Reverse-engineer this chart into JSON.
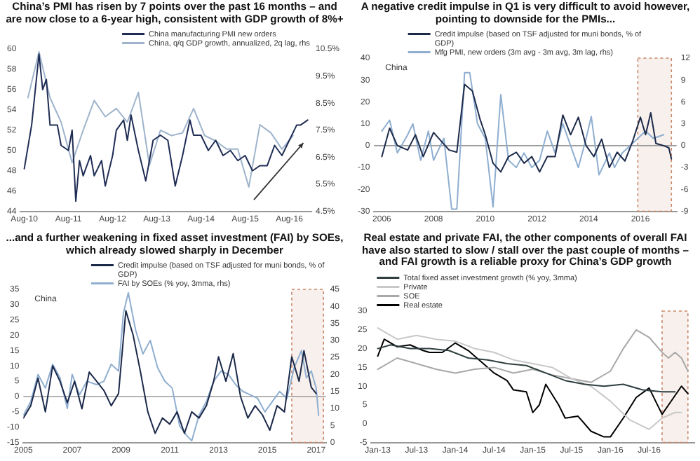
{
  "chart_data": [
    {
      "type": "line",
      "title": "China’s PMI has risen by 7 points over the past 16 months – and are now close to a 6-year high, consistent with GDP growth of 8%+",
      "legend": "top right",
      "xlim": [
        "2010-07",
        "2017-02"
      ],
      "xticks": [
        {
          "value": "2010-08",
          "label": "Aug-10"
        },
        {
          "value": "2011-08",
          "label": "Aug-11"
        },
        {
          "value": "2012-08",
          "label": "Aug-12"
        },
        {
          "value": "2013-08",
          "label": "Aug-13"
        },
        {
          "value": "2014-08",
          "label": "Aug-14"
        },
        {
          "value": "2015-08",
          "label": "Aug-15"
        },
        {
          "value": "2016-08",
          "label": "Aug-16"
        }
      ],
      "ylim": [
        44,
        60
      ],
      "yticks": [
        44,
        46,
        48,
        50,
        52,
        54,
        56,
        58,
        60
      ],
      "y2lim": [
        4.5,
        10.5
      ],
      "y2ticks": [
        {
          "value": 4.5,
          "label": "4.5%"
        },
        {
          "value": 5.5,
          "label": "5.5%"
        },
        {
          "value": 6.5,
          "label": "6.5%"
        },
        {
          "value": 7.5,
          "label": "7.5%"
        },
        {
          "value": 8.5,
          "label": "8.5%"
        },
        {
          "value": 9.5,
          "label": "9.5%"
        },
        {
          "value": 10.5,
          "label": "10.5%"
        }
      ],
      "series": [
        {
          "name": "China manufacturing PMI new orders",
          "color": "#1f2d55",
          "x": [
            "2010-08",
            "2010-10",
            "2010-11",
            "2010-12",
            "2011-01",
            "2011-02",
            "2011-03",
            "2011-05",
            "2011-06",
            "2011-08",
            "2011-09",
            "2011-10",
            "2011-11",
            "2011-12",
            "2012-02",
            "2012-03",
            "2012-05",
            "2012-06",
            "2012-08",
            "2012-09",
            "2012-11",
            "2012-12",
            "2013-01",
            "2013-03",
            "2013-05",
            "2013-07",
            "2013-09",
            "2013-11",
            "2014-01",
            "2014-03",
            "2014-05",
            "2014-06",
            "2014-08",
            "2014-10",
            "2014-12",
            "2015-02",
            "2015-04",
            "2015-06",
            "2015-08",
            "2015-10",
            "2015-12",
            "2016-02",
            "2016-04",
            "2016-06",
            "2016-08",
            "2016-10",
            "2016-11",
            "2017-01"
          ],
          "values": [
            48.2,
            52.5,
            56,
            59.5,
            56,
            57,
            52.5,
            52.5,
            50.5,
            50,
            52,
            45,
            49,
            47.5,
            49.5,
            47.5,
            49,
            46.5,
            49.5,
            52,
            53,
            51,
            53.5,
            50,
            47,
            51,
            51.5,
            51,
            46.5,
            49.5,
            53,
            51.5,
            51.5,
            50,
            51,
            49.5,
            50,
            49,
            49.5,
            48,
            48.5,
            48.5,
            50.5,
            49.5,
            51,
            52.5,
            52.5,
            53
          ]
        },
        {
          "name": "China, q/q GDP growth, annualized, 2q lag, rhs",
          "color": "#9fb4cc",
          "axis": "y2",
          "x": [
            "2010-09",
            "2010-12",
            "2011-03",
            "2011-06",
            "2011-09",
            "2011-12",
            "2012-03",
            "2012-06",
            "2012-09",
            "2012-12",
            "2013-03",
            "2013-06",
            "2013-09",
            "2013-12",
            "2014-03",
            "2014-06",
            "2014-09",
            "2014-12",
            "2015-03",
            "2015-06",
            "2015-09",
            "2015-12",
            "2016-03",
            "2016-06",
            "2016-09"
          ],
          "values": [
            8.7,
            10.4,
            8.7,
            7.8,
            6.3,
            7.5,
            8.6,
            8,
            8.3,
            7.8,
            8.9,
            6.2,
            7.5,
            7.3,
            7.4,
            8.3,
            7.3,
            7.1,
            6.8,
            6.8,
            5.4,
            7.7,
            7.4,
            6.8,
            7.3
          ]
        }
      ]
    },
    {
      "type": "line",
      "title": "A negative credit impulse in Q1 is very difficult to avoid however, pointing to downside for the PMIs...",
      "legend": "top",
      "annotations": [
        "China"
      ],
      "xlim": [
        2005.7,
        2017.4
      ],
      "xticks": [
        2006,
        2008,
        2010,
        2012,
        2014,
        2016
      ],
      "ylim": [
        -30,
        40
      ],
      "yticks": [
        -30,
        -20,
        -10,
        0,
        10,
        20,
        30,
        40
      ],
      "y2lim": [
        -9,
        12
      ],
      "y2ticks": [
        -9,
        -6,
        -3,
        0,
        3,
        6,
        9,
        12
      ],
      "ref_lines": [
        {
          "axis": "y",
          "value": 0,
          "color": "#9a9a9a"
        }
      ],
      "bands": [
        {
          "axis": "x",
          "from": 2015.9,
          "to": 2017.2,
          "color": "#c8876a"
        }
      ],
      "series": [
        {
          "name": "Credit impulse (based on TSF adjusted for muni bonds, % of GDP)",
          "color": "#1c2a4a",
          "x": [
            2006,
            2006.3,
            2006.6,
            2007,
            2007.3,
            2007.6,
            2008,
            2008.3,
            2008.6,
            2008.9,
            2009.2,
            2009.5,
            2009.8,
            2010,
            2010.3,
            2010.6,
            2010.9,
            2011.2,
            2011.5,
            2011.8,
            2012.1,
            2012.4,
            2012.7,
            2013,
            2013.3,
            2013.6,
            2013.9,
            2014.2,
            2014.5,
            2014.8,
            2015.1,
            2015.4,
            2015.7,
            2016,
            2016.2,
            2016.4,
            2016.6,
            2016.9,
            2017.1,
            2017.2
          ],
          "values": [
            -5,
            8,
            0,
            -2,
            5,
            -5,
            6,
            2,
            -2,
            -3,
            28,
            25,
            12,
            5,
            -8,
            -12,
            -5,
            -3,
            -8,
            -5,
            -12,
            -5,
            -5,
            14,
            5,
            13,
            0,
            -5,
            3,
            -10,
            -3,
            -7,
            2,
            13,
            5,
            15,
            1,
            0,
            -1,
            -6
          ]
        },
        {
          "name": "Mfg PMI, new orders (3m avg - 3m avg, 3m lag, rhs)",
          "color": "#8faed0",
          "axis": "y2",
          "x": [
            2006,
            2006.3,
            2006.6,
            2007,
            2007.2,
            2007.5,
            2007.8,
            2008,
            2008.4,
            2008.7,
            2008.9,
            2009.2,
            2009.4,
            2009.7,
            2010,
            2010.3,
            2010.6,
            2010.9,
            2011.2,
            2011.5,
            2011.8,
            2012.1,
            2012.4,
            2012.7,
            2013,
            2013.3,
            2013.6,
            2013.9,
            2014.1,
            2014.4,
            2014.8,
            2015,
            2015.3,
            2015.6,
            2015.9,
            2016.2,
            2016.5,
            2016.9
          ],
          "values": [
            2,
            3.5,
            -1,
            1.5,
            3,
            -2,
            2,
            -2,
            1,
            -8.7,
            -8.7,
            10,
            10,
            3,
            1,
            -8.4,
            7,
            -2,
            -3,
            -1,
            -3,
            -2,
            2,
            -1,
            3,
            0,
            -3,
            1,
            4,
            -4,
            -1,
            -3,
            -1,
            0,
            1,
            2,
            1,
            1.5
          ]
        }
      ]
    },
    {
      "type": "line",
      "title": "...and a further weakening in fixed asset investment (FAI) by SOEs, which already slowed sharply in December",
      "legend": "top right",
      "annotations": [
        "China"
      ],
      "xlim": [
        2005,
        2017.4
      ],
      "xticks": [
        2005,
        2007,
        2009,
        2011,
        2013,
        2015,
        2017
      ],
      "ylim": [
        -15,
        35
      ],
      "yticks": [
        -15,
        -10,
        -5,
        0,
        5,
        10,
        15,
        20,
        25,
        30,
        35
      ],
      "y2lim": [
        0,
        45
      ],
      "y2ticks": [
        0,
        5,
        10,
        15,
        20,
        25,
        30,
        35,
        40,
        45
      ],
      "ref_lines": [
        {
          "axis": "y",
          "value": 0,
          "color": "#9a9a9a"
        }
      ],
      "bands": [
        {
          "axis": "x",
          "from": 2016,
          "to": 2017.3,
          "color": "#c8876a"
        }
      ],
      "series": [
        {
          "name": "Credit impulse (based on TSF adjusted for muni bonds, % of GDP)",
          "color": "#1c2a4a",
          "x": [
            2005,
            2005.3,
            2005.6,
            2005.9,
            2006.2,
            2006.5,
            2006.8,
            2007.1,
            2007.4,
            2007.7,
            2008,
            2008.3,
            2008.6,
            2008.9,
            2009.2,
            2009.5,
            2009.8,
            2010.1,
            2010.4,
            2010.7,
            2011,
            2011.3,
            2011.6,
            2011.9,
            2012.2,
            2012.5,
            2012.8,
            2013,
            2013.3,
            2013.6,
            2013.9,
            2014.2,
            2014.5,
            2014.8,
            2015.1,
            2015.4,
            2015.7,
            2016,
            2016.3,
            2016.5,
            2016.8,
            2017
          ],
          "values": [
            -7,
            -3,
            6,
            -5,
            10,
            5,
            -2,
            5,
            -4,
            8,
            5,
            2,
            -3,
            1,
            28,
            20,
            8,
            -5,
            -12,
            -7,
            -9,
            -5,
            -12,
            -5,
            -7,
            -3,
            5,
            13,
            5,
            14,
            0,
            -7,
            -3,
            -6,
            -11,
            -3,
            -5,
            13,
            5,
            15,
            3,
            1
          ]
        },
        {
          "name": "FAI by SOEs (% yoy, 3mma, rhs)",
          "color": "#8faed0",
          "axis": "y2",
          "x": [
            2005,
            2005.3,
            2005.6,
            2005.9,
            2006.2,
            2006.5,
            2006.8,
            2007,
            2007.3,
            2007.6,
            2008,
            2008.3,
            2008.6,
            2008.9,
            2009.1,
            2009.3,
            2009.6,
            2009.9,
            2010.2,
            2010.5,
            2010.8,
            2011.1,
            2011.4,
            2011.7,
            2011.9,
            2012.2,
            2012.5,
            2012.8,
            2013.1,
            2013.4,
            2013.7,
            2014,
            2014.3,
            2014.6,
            2014.9,
            2015.2,
            2015.5,
            2015.8,
            2016.1,
            2016.4,
            2016.6,
            2016.8,
            2017,
            2017.1
          ],
          "values": [
            8,
            12,
            20,
            16,
            23,
            19,
            10,
            20,
            14,
            18,
            17,
            18,
            23,
            21,
            38,
            44,
            33,
            26,
            30,
            22,
            18,
            16,
            5,
            2,
            0.5,
            8,
            12,
            18,
            21,
            20,
            17,
            15,
            14,
            13,
            9,
            12,
            15,
            13,
            22,
            27,
            19,
            21,
            16,
            8
          ]
        }
      ]
    },
    {
      "type": "line",
      "title": "Real estate and private FAI, the other components of overall FAI have also started to slow / stall over the past couple of months – and FAI growth is a reliable proxy for China’s GDP growth",
      "legend": "top left",
      "xlim": [
        "2012-12",
        "2017-02"
      ],
      "xticks": [
        {
          "value": "2013-01",
          "label": "Jan-13"
        },
        {
          "value": "2013-07",
          "label": "Jul-13"
        },
        {
          "value": "2014-01",
          "label": "Jan-14"
        },
        {
          "value": "2014-07",
          "label": "Jul-14"
        },
        {
          "value": "2015-01",
          "label": "Jan-15"
        },
        {
          "value": "2015-07",
          "label": "Jul-15"
        },
        {
          "value": "2016-01",
          "label": "Jan-16"
        },
        {
          "value": "2016-07",
          "label": "Jul-16"
        }
      ],
      "ylim": [
        -5,
        30
      ],
      "yticks": [
        -5,
        0,
        5,
        10,
        15,
        20,
        25,
        30
      ],
      "bands": [
        {
          "axis": "x",
          "from": "2016-09",
          "to": "2017-01",
          "color": "#c8876a"
        }
      ],
      "series": [
        {
          "name": "Total fixed asset investment growth (% yoy, 3mma)",
          "color": "#2f3f3f",
          "x": [
            "2013-01",
            "2013-03",
            "2013-06",
            "2013-09",
            "2013-12",
            "2014-03",
            "2014-06",
            "2014-09",
            "2014-12",
            "2015-03",
            "2015-06",
            "2015-09",
            "2015-12",
            "2016-03",
            "2016-06",
            "2016-09",
            "2016-11"
          ],
          "values": [
            20,
            21,
            20,
            20,
            19.5,
            17.5,
            17,
            16,
            15.5,
            13.5,
            11.5,
            10.5,
            10,
            10.5,
            9,
            8.5,
            8.5
          ]
        },
        {
          "name": "Private",
          "color": "#c8c8c8",
          "x": [
            "2013-01",
            "2013-04",
            "2013-07",
            "2013-10",
            "2014-01",
            "2014-04",
            "2014-07",
            "2014-10",
            "2015-01",
            "2015-04",
            "2015-07",
            "2015-10",
            "2016-01",
            "2016-04",
            "2016-07",
            "2016-09",
            "2016-11",
            "2016-12"
          ],
          "values": [
            25.5,
            22.5,
            23.5,
            22.5,
            22,
            20,
            19,
            17,
            16,
            15,
            12,
            10,
            6,
            1,
            -1.5,
            1.5,
            3,
            3
          ]
        },
        {
          "name": "SOE",
          "color": "#a8a8a8",
          "x": [
            "2013-01",
            "2013-04",
            "2013-07",
            "2013-10",
            "2014-01",
            "2014-04",
            "2014-07",
            "2014-10",
            "2015-01",
            "2015-04",
            "2015-07",
            "2015-10",
            "2016-01",
            "2016-03",
            "2016-05",
            "2016-07",
            "2016-09",
            "2016-10",
            "2016-11",
            "2016-12",
            "2017-01"
          ],
          "values": [
            14.5,
            17.5,
            16,
            14.5,
            13.5,
            14.5,
            15,
            13.5,
            14.5,
            13,
            12,
            11,
            14,
            20,
            25,
            23,
            19,
            17.5,
            19,
            17.5,
            14
          ]
        },
        {
          "name": "Real estate",
          "color": "#000000",
          "x": [
            "2013-01",
            "2013-02",
            "2013-04",
            "2013-06",
            "2013-08",
            "2013-09",
            "2013-11",
            "2014-01",
            "2014-03",
            "2014-05",
            "2014-07",
            "2014-09",
            "2014-10",
            "2014-12",
            "2015-01",
            "2015-02",
            "2015-03",
            "2015-05",
            "2015-06",
            "2015-08",
            "2015-10",
            "2015-12",
            "2016-01",
            "2016-03",
            "2016-05",
            "2016-07",
            "2016-09",
            "2016-10",
            "2016-12",
            "2017-01"
          ],
          "values": [
            18,
            22.5,
            20.5,
            21,
            19.5,
            19,
            19,
            21.5,
            19.5,
            16.5,
            13.5,
            11.5,
            9,
            8.5,
            3,
            5,
            10.5,
            5,
            1.5,
            2,
            -2,
            -3.5,
            -3.5,
            1.5,
            7,
            9.5,
            2.5,
            5,
            10,
            8
          ]
        }
      ]
    }
  ]
}
